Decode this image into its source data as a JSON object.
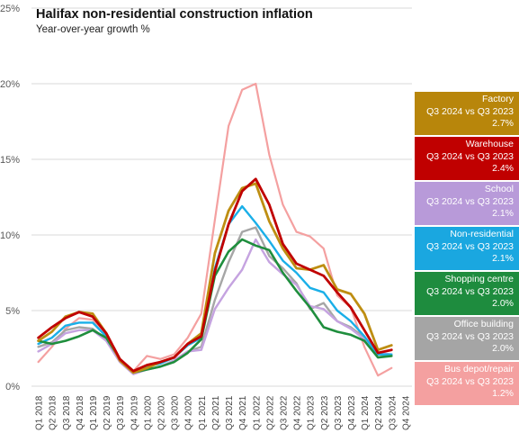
{
  "chart_data": {
    "type": "line",
    "title": "Halifax non-residential  construction inflation",
    "subtitle": "Year-over-year  growth %",
    "ylim": [
      0,
      25
    ],
    "yticks": [
      0,
      5,
      10,
      15,
      20,
      25
    ],
    "ytick_labels": [
      "0%",
      "5%",
      "10%",
      "15%",
      "20%",
      "25%"
    ],
    "grid": true,
    "legend_placement": "right",
    "x": [
      "Q1 2018",
      "Q2 2018",
      "Q3 2018",
      "Q4 2018",
      "Q1 2019",
      "Q2 2019",
      "Q3 2019",
      "Q4 2019",
      "Q1 2020",
      "Q2 2020",
      "Q3 2020",
      "Q4 2020",
      "Q1 2021",
      "Q2 2021",
      "Q3 2021",
      "Q4 2021",
      "Q1 2022",
      "Q2 2022",
      "Q3 2022",
      "Q4 2022",
      "Q1 2023",
      "Q2 2023",
      "Q3 2023",
      "Q4 2023",
      "Q1 2024",
      "Q2 2024",
      "Q3 2024",
      "Q4 2024"
    ],
    "series": [
      {
        "name": "Bus depot/repair",
        "color": "#F4A0A0",
        "width": 2.2,
        "values": [
          1.6,
          2.6,
          3.8,
          4.5,
          4.4,
          3.5,
          1.8,
          1.0,
          2.0,
          1.8,
          2.1,
          3.2,
          4.8,
          11.0,
          17.2,
          19.6,
          20.0,
          15.3,
          12.0,
          10.2,
          9.9,
          9.1,
          6.0,
          5.2,
          2.6,
          0.7,
          1.2,
          null
        ],
        "legend_lines": [
          "Bus depot/repair",
          "Q3 2024 vs Q3 2023",
          "1.2%"
        ]
      },
      {
        "name": "Office building",
        "color": "#A6A6A6",
        "width": 2.4,
        "values": [
          2.6,
          2.9,
          3.7,
          3.9,
          3.8,
          3.1,
          1.8,
          0.9,
          1.1,
          1.3,
          1.7,
          2.3,
          2.6,
          5.7,
          8.2,
          10.2,
          10.5,
          8.6,
          7.8,
          6.8,
          5.1,
          5.5,
          4.3,
          3.9,
          3.2,
          2.1,
          2.0,
          null
        ],
        "legend_lines": [
          "Office building",
          "Q3 2024 vs Q3 2023",
          "2.0%"
        ]
      },
      {
        "name": "School",
        "color": "#C5A3E0",
        "width": 2.4,
        "values": [
          2.3,
          2.8,
          3.5,
          3.7,
          3.7,
          3.0,
          1.6,
          0.8,
          1.1,
          1.3,
          1.7,
          2.3,
          2.4,
          5.1,
          6.5,
          7.7,
          9.7,
          8.2,
          7.4,
          6.7,
          5.3,
          5.1,
          4.3,
          3.8,
          3.1,
          2.2,
          2.1,
          null
        ],
        "legend_lines": [
          "School",
          "Q3 2024 vs Q3 2023",
          "2.1%"
        ]
      },
      {
        "name": "Non-residential",
        "color": "#1AAFE8",
        "width": 2.4,
        "values": [
          2.8,
          3.2,
          4.0,
          4.2,
          4.2,
          3.3,
          1.8,
          0.9,
          1.3,
          1.5,
          1.9,
          2.7,
          3.2,
          7.8,
          10.7,
          11.9,
          10.8,
          9.6,
          8.3,
          7.5,
          6.5,
          6.2,
          5.0,
          4.3,
          3.3,
          2.1,
          2.1,
          null
        ],
        "legend_lines": [
          "Non-residential",
          "Q3 2024 vs Q3 2023",
          "2.1%"
        ]
      },
      {
        "name": "Shopping centre",
        "color": "#1F8E3D",
        "width": 2.6,
        "values": [
          3.0,
          2.8,
          3.0,
          3.3,
          3.7,
          3.2,
          1.8,
          0.9,
          1.1,
          1.3,
          1.6,
          2.2,
          3.1,
          7.3,
          8.9,
          9.7,
          9.3,
          9.0,
          7.5,
          6.3,
          5.2,
          3.9,
          3.6,
          3.4,
          3.0,
          1.9,
          2.0,
          null
        ],
        "legend_lines": [
          "Shopping centre",
          "Q3 2024 vs Q3 2023",
          "2.0%"
        ]
      },
      {
        "name": "Factory",
        "color": "#BE8E12",
        "width": 2.8,
        "values": [
          3.0,
          3.6,
          4.6,
          4.9,
          4.8,
          3.5,
          1.7,
          0.9,
          1.2,
          1.6,
          1.9,
          2.8,
          3.5,
          8.8,
          11.6,
          13.1,
          13.4,
          10.9,
          9.1,
          7.8,
          7.7,
          8.0,
          6.4,
          6.1,
          4.8,
          2.4,
          2.7,
          null
        ],
        "legend_lines": [
          "Factory",
          "Q3 2024 vs Q3 2023",
          "2.7%"
        ]
      },
      {
        "name": "Warehouse",
        "color": "#C00000",
        "width": 2.8,
        "values": [
          3.2,
          3.9,
          4.5,
          4.9,
          4.6,
          3.5,
          1.8,
          1.0,
          1.4,
          1.6,
          1.9,
          2.8,
          3.3,
          7.6,
          10.7,
          12.9,
          13.7,
          12.0,
          9.4,
          8.1,
          7.7,
          7.3,
          6.2,
          5.2,
          3.7,
          2.2,
          2.4,
          null
        ],
        "legend_lines": [
          "Warehouse",
          "Q3 2024 vs Q3 2023",
          "2.4%"
        ]
      }
    ],
    "legend_order": [
      "Factory",
      "Warehouse",
      "School",
      "Non-residential",
      "Shopping centre",
      "Office building",
      "Bus depot/repair"
    ],
    "legend_colors": {
      "Factory": "#B8860B",
      "Warehouse": "#C00000",
      "School": "#B89AD9",
      "Non-residential": "#1AA7E0",
      "Shopping centre": "#1E8C3E",
      "Office building": "#A5A5A5",
      "Bus depot/repair": "#F4A0A0"
    }
  }
}
